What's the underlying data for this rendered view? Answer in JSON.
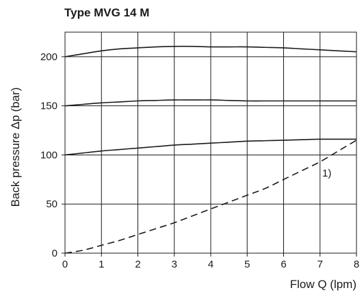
{
  "chart_data": {
    "type": "line",
    "title": "Type MVG 14 M",
    "xlabel": "Flow Q (lpm)",
    "ylabel": "Back pressure  Δp (bar)",
    "xlim": [
      0,
      8
    ],
    "ylim": [
      0,
      225
    ],
    "x_ticks": [
      0,
      1,
      2,
      3,
      4,
      5,
      6,
      7,
      8
    ],
    "y_ticks": [
      0,
      50,
      100,
      150,
      200
    ],
    "grid": true,
    "annotation": "1)",
    "series": [
      {
        "style": "solid",
        "x": [
          0,
          0.5,
          1,
          1.5,
          2,
          2.5,
          3,
          3.5,
          4,
          4.5,
          5,
          5.5,
          6,
          6.5,
          7,
          7.5,
          8
        ],
        "y": [
          200,
          203,
          206,
          208,
          209,
          210,
          210.5,
          210.5,
          210,
          210,
          210,
          209.5,
          209,
          208,
          207,
          206,
          205
        ]
      },
      {
        "style": "solid",
        "x": [
          0,
          0.5,
          1,
          1.5,
          2,
          2.5,
          3,
          3.5,
          4,
          4.5,
          5,
          5.5,
          6,
          6.5,
          7,
          7.5,
          8
        ],
        "y": [
          150,
          151.5,
          153,
          154,
          155,
          155.5,
          156,
          156,
          156,
          155.5,
          155,
          155,
          155,
          155,
          155,
          155,
          155
        ]
      },
      {
        "style": "solid",
        "x": [
          0,
          0.5,
          1,
          1.5,
          2,
          2.5,
          3,
          3.5,
          4,
          4.5,
          5,
          5.5,
          6,
          6.5,
          7,
          7.5,
          8
        ],
        "y": [
          100,
          102,
          104,
          105.5,
          107,
          108.5,
          110,
          111,
          112,
          113,
          114,
          114.5,
          115,
          115.5,
          116,
          116,
          116
        ]
      },
      {
        "style": "dashed",
        "x": [
          0,
          0.5,
          1,
          1.5,
          2,
          2.5,
          3,
          3.5,
          4,
          4.5,
          5,
          5.5,
          6,
          6.5,
          7,
          7.5,
          8
        ],
        "y": [
          0,
          3,
          8,
          13,
          19,
          25,
          31,
          38,
          45,
          52,
          59,
          66,
          75,
          84,
          93,
          104,
          115
        ]
      }
    ]
  }
}
